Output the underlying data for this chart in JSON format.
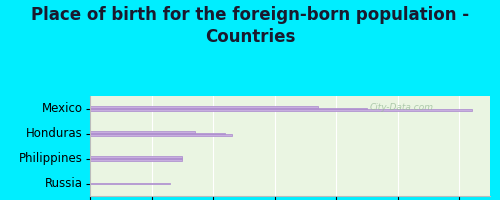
{
  "title": "Place of birth for the foreign-born population -\nCountries",
  "categories": [
    "Mexico",
    "Honduras",
    "Philippines",
    "Russia"
  ],
  "bars": [
    [
      62,
      45,
      37
    ],
    [
      23,
      22,
      17
    ],
    [
      15,
      15,
      15
    ],
    [
      13
    ]
  ],
  "bar_color": "#c8aee0",
  "bar_edge_color": "#aa88cc",
  "background_outer": "#00eeff",
  "background_inner": "#eaf5e2",
  "grid_color": "#ffffff",
  "xlim": [
    0,
    65
  ],
  "xticks": [
    0,
    10,
    20,
    30,
    40,
    50,
    60
  ],
  "title_fontsize": 12,
  "label_fontsize": 8.5,
  "tick_fontsize": 8,
  "watermark": "City-Data.com",
  "bar_height": 0.055,
  "bar_gap": 0.01
}
